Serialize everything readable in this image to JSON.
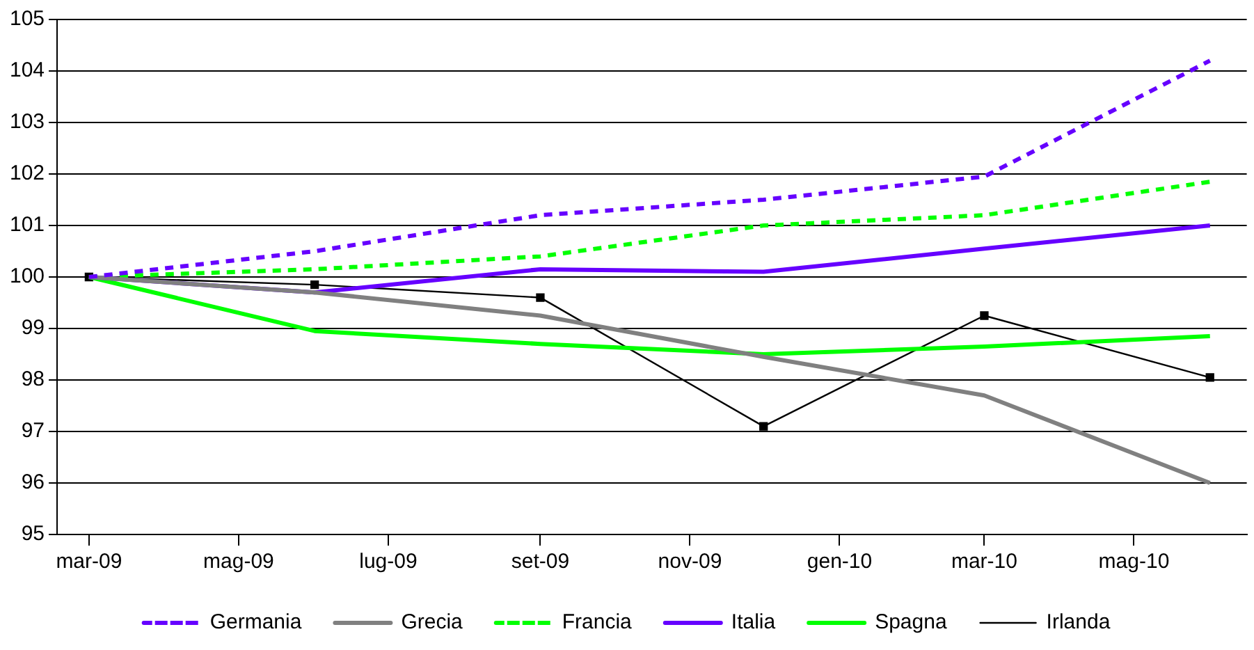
{
  "chart_data": {
    "type": "line",
    "x": [
      "2009-03",
      "2009-06",
      "2009-09",
      "2009-12",
      "2010-03",
      "2010-06"
    ],
    "series": [
      {
        "name": "Germania",
        "color": "#6600ff",
        "line_style": "dashed",
        "marker": "none",
        "values": [
          100,
          100.5,
          101.2,
          101.5,
          101.95,
          104.2
        ]
      },
      {
        "name": "Grecia",
        "color": "#808080",
        "line_style": "solid",
        "marker": "none",
        "values": [
          100,
          99.7,
          99.25,
          98.45,
          97.7,
          96.0
        ]
      },
      {
        "name": "Francia",
        "color": "#00ff00",
        "line_style": "dashed",
        "marker": "none",
        "values": [
          100,
          100.15,
          100.4,
          101.0,
          101.2,
          101.85
        ]
      },
      {
        "name": "Italia",
        "color": "#6600ff",
        "line_style": "solid",
        "marker": "none",
        "values": [
          100,
          99.7,
          100.15,
          100.1,
          100.55,
          101.0
        ]
      },
      {
        "name": "Spagna",
        "color": "#00ff00",
        "line_style": "solid",
        "marker": "none",
        "values": [
          100,
          98.95,
          98.7,
          98.5,
          98.65,
          98.85
        ]
      },
      {
        "name": "Irlanda",
        "color": "#000000",
        "line_style": "solid",
        "marker": "square",
        "values": [
          100,
          99.85,
          99.6,
          97.1,
          99.25,
          98.05
        ]
      }
    ],
    "xlim": [
      "2009-02-16",
      "2010-06-16"
    ],
    "xticks": [
      {
        "value": "2009-03",
        "label": "mar-09"
      },
      {
        "value": "2009-05",
        "label": "mag-09"
      },
      {
        "value": "2009-07",
        "label": "lug-09"
      },
      {
        "value": "2009-09",
        "label": "set-09"
      },
      {
        "value": "2009-11",
        "label": "nov-09"
      },
      {
        "value": "2010-01",
        "label": "gen-10"
      },
      {
        "value": "2010-03",
        "label": "mar-10"
      },
      {
        "value": "2010-05",
        "label": "mag-10"
      }
    ],
    "ylim": [
      95,
      105
    ],
    "yticks": [
      95,
      96,
      97,
      98,
      99,
      100,
      101,
      102,
      103,
      104,
      105
    ],
    "grid": "y",
    "legend": "bottom"
  }
}
